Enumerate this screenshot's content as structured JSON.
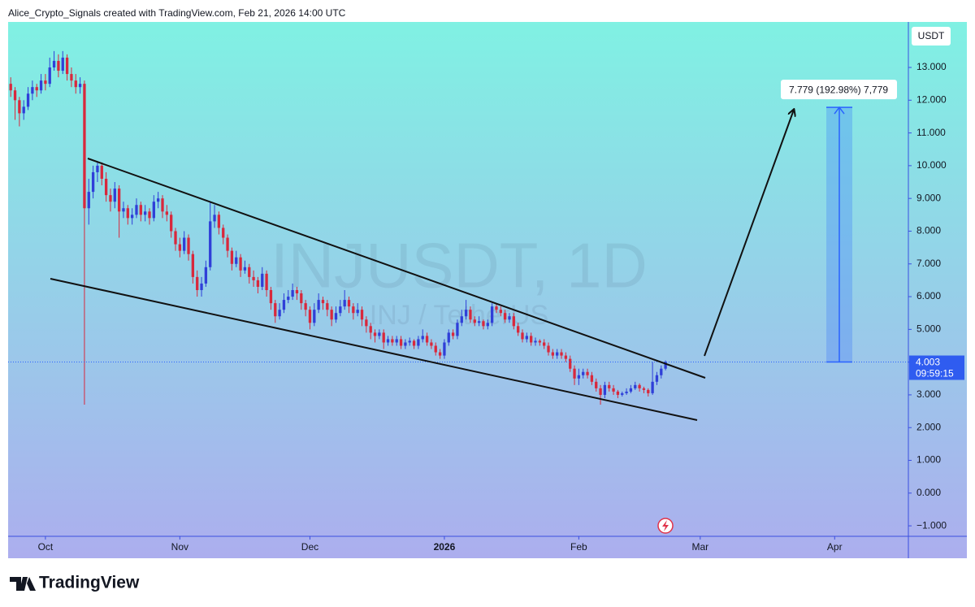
{
  "header": "Alice_Crypto_Signals created with TradingView.com, Feb 21, 2026 14:00 UTC",
  "brand": "TradingView",
  "chart_data": {
    "type": "candlestick",
    "title": "INJUSDT, 1D",
    "subtitle": "INJ / TetherUS",
    "currency": "USDT",
    "countdown": "09:59:15",
    "up_color": "#2f3fd8",
    "down_color": "#d8283c",
    "xlim": [
      -0.6,
      207
    ],
    "xticks": [
      {
        "value": 8,
        "label": "Oct"
      },
      {
        "value": 39,
        "label": "Nov"
      },
      {
        "value": 69,
        "label": "Dec"
      },
      {
        "value": 100,
        "label": "2026"
      },
      {
        "value": 131,
        "label": "Feb"
      },
      {
        "value": 159,
        "label": "Mar"
      },
      {
        "value": 190,
        "label": "Apr"
      }
    ],
    "ylim": [
      -1.32,
      14.39
    ],
    "yticks": [
      {
        "value": 13,
        "label": "13.000"
      },
      {
        "value": 12,
        "label": "12.000"
      },
      {
        "value": 11,
        "label": "11.000"
      },
      {
        "value": 10,
        "label": "10.000"
      },
      {
        "value": 9,
        "label": "9.000"
      },
      {
        "value": 8,
        "label": "8.000"
      },
      {
        "value": 7,
        "label": "7.000"
      },
      {
        "value": 6,
        "label": "6.000"
      },
      {
        "value": 5,
        "label": "5.000"
      },
      {
        "value": 4,
        "label": "4.000"
      },
      {
        "value": 3,
        "label": "3.000"
      },
      {
        "value": 2,
        "label": "2.000"
      },
      {
        "value": 1,
        "label": "1.000"
      },
      {
        "value": 0,
        "label": "0.000"
      },
      {
        "value": -1,
        "label": "−1.000"
      }
    ],
    "measure": {
      "from": 4.003,
      "to": 11.782,
      "label": "7.779 (192.98%) 7,779"
    },
    "candles": [
      [
        12.5,
        12.7,
        12.1,
        12.3
      ],
      [
        12.3,
        12.4,
        11.4,
        12.0
      ],
      [
        12.0,
        12.1,
        11.2,
        11.6
      ],
      [
        11.6,
        12.0,
        11.4,
        11.8
      ],
      [
        11.8,
        12.4,
        11.7,
        12.2
      ],
      [
        12.2,
        12.6,
        12.0,
        12.4
      ],
      [
        12.4,
        12.5,
        12.1,
        12.3
      ],
      [
        12.3,
        12.8,
        12.2,
        12.6
      ],
      [
        12.6,
        12.8,
        12.3,
        12.5
      ],
      [
        12.5,
        13.3,
        12.4,
        13.0
      ],
      [
        13.0,
        13.5,
        12.9,
        13.2
      ],
      [
        13.2,
        13.4,
        12.7,
        12.9
      ],
      [
        12.9,
        13.5,
        12.8,
        13.3
      ],
      [
        13.3,
        13.4,
        12.6,
        12.8
      ],
      [
        12.8,
        13.0,
        12.4,
        12.6
      ],
      [
        12.6,
        12.8,
        12.2,
        12.4
      ],
      [
        12.4,
        12.7,
        12.2,
        12.5
      ],
      [
        12.5,
        12.6,
        2.7,
        8.7
      ],
      [
        8.7,
        9.6,
        8.2,
        9.2
      ],
      [
        9.2,
        10.0,
        9.0,
        9.8
      ],
      [
        9.8,
        10.1,
        9.5,
        10.0
      ],
      [
        10.0,
        10.1,
        9.4,
        9.6
      ],
      [
        9.6,
        9.8,
        8.9,
        9.1
      ],
      [
        9.1,
        9.3,
        8.6,
        8.9
      ],
      [
        8.9,
        9.5,
        8.7,
        9.3
      ],
      [
        9.3,
        9.4,
        7.8,
        8.6
      ],
      [
        8.6,
        8.9,
        8.4,
        8.7
      ],
      [
        8.7,
        8.8,
        8.2,
        8.4
      ],
      [
        8.4,
        8.7,
        8.2,
        8.5
      ],
      [
        8.5,
        9.0,
        8.4,
        8.8
      ],
      [
        8.8,
        8.9,
        8.3,
        8.5
      ],
      [
        8.5,
        8.8,
        8.3,
        8.6
      ],
      [
        8.6,
        8.7,
        8.2,
        8.4
      ],
      [
        8.4,
        9.1,
        8.3,
        8.9
      ],
      [
        8.9,
        9.2,
        8.7,
        9.0
      ],
      [
        9.0,
        9.1,
        8.4,
        8.6
      ],
      [
        8.6,
        8.8,
        8.3,
        8.5
      ],
      [
        8.5,
        8.6,
        7.8,
        8.0
      ],
      [
        8.0,
        8.1,
        7.4,
        7.6
      ],
      [
        7.6,
        7.8,
        7.2,
        7.4
      ],
      [
        7.4,
        8.0,
        7.3,
        7.8
      ],
      [
        7.8,
        7.9,
        7.1,
        7.3
      ],
      [
        7.3,
        7.4,
        6.4,
        6.6
      ],
      [
        6.6,
        6.8,
        6.0,
        6.2
      ],
      [
        6.2,
        6.6,
        6.0,
        6.4
      ],
      [
        6.4,
        7.1,
        6.3,
        6.9
      ],
      [
        6.9,
        8.9,
        6.8,
        8.3
      ],
      [
        8.3,
        8.8,
        8.1,
        8.5
      ],
      [
        8.5,
        8.6,
        7.9,
        8.1
      ],
      [
        8.1,
        8.2,
        7.6,
        7.8
      ],
      [
        7.8,
        7.9,
        7.2,
        7.4
      ],
      [
        7.4,
        7.5,
        6.8,
        7.0
      ],
      [
        7.0,
        7.4,
        6.9,
        7.2
      ],
      [
        7.2,
        7.3,
        6.6,
        6.8
      ],
      [
        6.8,
        7.1,
        6.7,
        6.9
      ],
      [
        6.9,
        7.0,
        6.4,
        6.6
      ],
      [
        6.6,
        6.8,
        6.3,
        6.5
      ],
      [
        6.5,
        6.6,
        6.1,
        6.3
      ],
      [
        6.3,
        6.9,
        6.2,
        6.7
      ],
      [
        6.7,
        6.8,
        6.0,
        6.2
      ],
      [
        6.2,
        6.3,
        5.6,
        5.8
      ],
      [
        5.8,
        5.9,
        5.2,
        5.4
      ],
      [
        5.4,
        5.8,
        5.3,
        5.6
      ],
      [
        5.6,
        6.1,
        5.5,
        5.9
      ],
      [
        5.9,
        6.2,
        5.8,
        6.0
      ],
      [
        6.0,
        6.4,
        5.9,
        6.2
      ],
      [
        6.2,
        6.3,
        5.9,
        6.1
      ],
      [
        6.1,
        6.2,
        5.6,
        5.8
      ],
      [
        5.8,
        5.9,
        5.4,
        5.6
      ],
      [
        5.6,
        5.7,
        5.0,
        5.2
      ],
      [
        5.2,
        5.8,
        5.1,
        5.6
      ],
      [
        5.6,
        6.1,
        5.5,
        5.9
      ],
      [
        5.9,
        6.0,
        5.6,
        5.8
      ],
      [
        5.8,
        5.9,
        5.4,
        5.6
      ],
      [
        5.6,
        5.7,
        5.1,
        5.3
      ],
      [
        5.3,
        5.7,
        5.2,
        5.5
      ],
      [
        5.5,
        5.9,
        5.4,
        5.7
      ],
      [
        5.7,
        6.2,
        5.6,
        5.9
      ],
      [
        5.9,
        6.0,
        5.5,
        5.7
      ],
      [
        5.7,
        5.8,
        5.3,
        5.5
      ],
      [
        5.5,
        5.8,
        5.4,
        5.6
      ],
      [
        5.6,
        5.7,
        5.1,
        5.3
      ],
      [
        5.3,
        5.4,
        4.9,
        5.1
      ],
      [
        5.1,
        5.2,
        4.7,
        4.9
      ],
      [
        4.9,
        5.0,
        4.6,
        4.8
      ],
      [
        4.8,
        5.0,
        4.7,
        4.9
      ],
      [
        4.9,
        5.0,
        4.4,
        4.6
      ],
      [
        4.6,
        4.8,
        4.5,
        4.7
      ],
      [
        4.7,
        4.8,
        4.5,
        4.6
      ],
      [
        4.6,
        4.8,
        4.5,
        4.7
      ],
      [
        4.7,
        4.8,
        4.4,
        4.5
      ],
      [
        4.5,
        4.7,
        4.4,
        4.6
      ],
      [
        4.6,
        4.75,
        4.5,
        4.65
      ],
      [
        4.65,
        4.7,
        4.4,
        4.5
      ],
      [
        4.5,
        4.8,
        4.4,
        4.7
      ],
      [
        4.7,
        5.0,
        4.6,
        4.8
      ],
      [
        4.8,
        4.9,
        4.5,
        4.6
      ],
      [
        4.6,
        4.7,
        4.4,
        4.5
      ],
      [
        4.5,
        4.6,
        4.2,
        4.3
      ],
      [
        4.3,
        4.4,
        4.1,
        4.2
      ],
      [
        4.2,
        4.7,
        4.1,
        4.6
      ],
      [
        4.6,
        5.0,
        4.5,
        4.9
      ],
      [
        4.9,
        5.0,
        4.7,
        4.8
      ],
      [
        4.8,
        5.3,
        4.7,
        5.2
      ],
      [
        5.2,
        5.6,
        5.1,
        5.4
      ],
      [
        5.4,
        5.9,
        5.3,
        5.6
      ],
      [
        5.6,
        5.7,
        5.2,
        5.3
      ],
      [
        5.3,
        5.4,
        5.1,
        5.2
      ],
      [
        5.2,
        5.4,
        5.1,
        5.25
      ],
      [
        5.25,
        5.3,
        5.0,
        5.1
      ],
      [
        5.1,
        5.3,
        5.0,
        5.2
      ],
      [
        5.2,
        5.8,
        5.1,
        5.7
      ],
      [
        5.7,
        5.8,
        5.5,
        5.6
      ],
      [
        5.6,
        5.7,
        5.4,
        5.5
      ],
      [
        5.5,
        5.6,
        5.2,
        5.3
      ],
      [
        5.3,
        5.5,
        5.2,
        5.4
      ],
      [
        5.4,
        5.5,
        5.0,
        5.1
      ],
      [
        5.1,
        5.2,
        4.8,
        4.9
      ],
      [
        4.9,
        5.0,
        4.6,
        4.7
      ],
      [
        4.7,
        4.9,
        4.6,
        4.8
      ],
      [
        4.8,
        4.9,
        4.5,
        4.6
      ],
      [
        4.6,
        4.75,
        4.5,
        4.65
      ],
      [
        4.65,
        4.7,
        4.5,
        4.6
      ],
      [
        4.6,
        4.7,
        4.4,
        4.5
      ],
      [
        4.5,
        4.6,
        4.2,
        4.3
      ],
      [
        4.3,
        4.4,
        4.1,
        4.2
      ],
      [
        4.2,
        4.4,
        4.1,
        4.3
      ],
      [
        4.3,
        4.4,
        4.1,
        4.2
      ],
      [
        4.2,
        4.3,
        4.0,
        4.1
      ],
      [
        4.1,
        4.2,
        3.7,
        3.8
      ],
      [
        3.8,
        3.9,
        3.3,
        3.5
      ],
      [
        3.5,
        3.8,
        3.3,
        3.6
      ],
      [
        3.6,
        3.8,
        3.5,
        3.7
      ],
      [
        3.7,
        3.8,
        3.5,
        3.6
      ],
      [
        3.6,
        3.7,
        3.3,
        3.4
      ],
      [
        3.4,
        3.5,
        3.1,
        3.2
      ],
      [
        3.2,
        3.3,
        2.7,
        3.0
      ],
      [
        3.0,
        3.4,
        2.9,
        3.3
      ],
      [
        3.3,
        3.4,
        3.1,
        3.2
      ],
      [
        3.2,
        3.3,
        3.0,
        3.1
      ],
      [
        3.1,
        3.15,
        2.9,
        3.0
      ],
      [
        3.0,
        3.1,
        2.95,
        3.05
      ],
      [
        3.05,
        3.2,
        3.0,
        3.1
      ],
      [
        3.1,
        3.3,
        3.05,
        3.2
      ],
      [
        3.2,
        3.4,
        3.15,
        3.3
      ],
      [
        3.3,
        3.35,
        3.1,
        3.2
      ],
      [
        3.2,
        3.25,
        3.05,
        3.15
      ],
      [
        3.15,
        3.2,
        2.95,
        3.05
      ],
      [
        3.05,
        4.0,
        3.0,
        3.4
      ],
      [
        3.4,
        3.7,
        3.3,
        3.6
      ],
      [
        3.6,
        3.9,
        3.5,
        3.8
      ],
      [
        3.8,
        4.05,
        3.75,
        4.003
      ]
    ]
  }
}
